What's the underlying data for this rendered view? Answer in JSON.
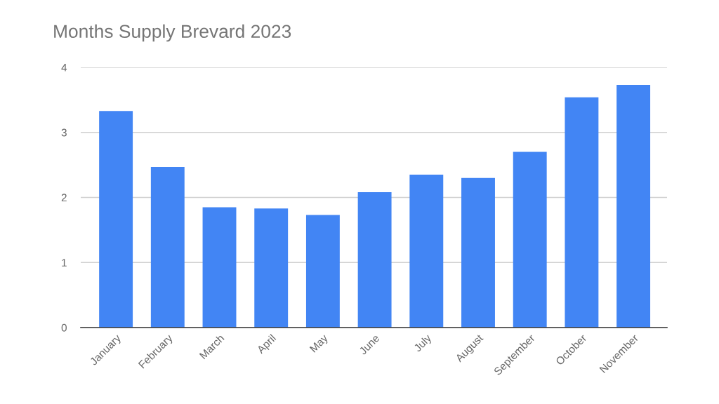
{
  "chart_data": {
    "type": "bar",
    "title": "Months Supply Brevard 2023",
    "categories": [
      "January",
      "February",
      "March",
      "April",
      "May",
      "June",
      "July",
      "August",
      "September",
      "October",
      "November"
    ],
    "values": [
      3.33,
      2.47,
      1.85,
      1.83,
      1.73,
      2.08,
      2.35,
      2.3,
      2.7,
      3.54,
      3.73
    ],
    "color": "#4285f4",
    "ylim": [
      0,
      4
    ],
    "yticks": [
      0,
      1,
      2,
      3,
      4
    ],
    "grid": "y"
  }
}
